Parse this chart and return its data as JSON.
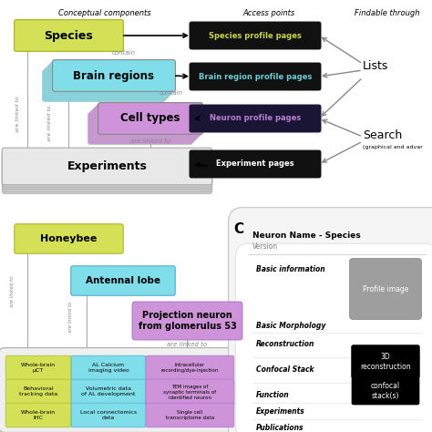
{
  "bg_color": "#ffffff",
  "header_conceptual": "Conceptual components",
  "header_access": "Access points",
  "header_findable": "Findable through",
  "species_color": "#d4e157",
  "brain_color": "#80deea",
  "cell_color": "#ce93d8",
  "exp_bg_color": "#e8e8e8",
  "exp_shadow_color": "#b0b0b0",
  "black_box_color": "#111111",
  "species_text_color": "#c8d44a",
  "brain_text_color": "#6ecdd8",
  "cell_text_color": "#b87fd0",
  "white": "#ffffff",
  "gray_line": "#888888",
  "gray_text": "#888888",
  "card_bg": "#f0f0f0",
  "card_border": "#cccccc",
  "profile_gray": "#9e9e9e",
  "panel_c_label": "C",
  "note_search": "(graphical and advar"
}
